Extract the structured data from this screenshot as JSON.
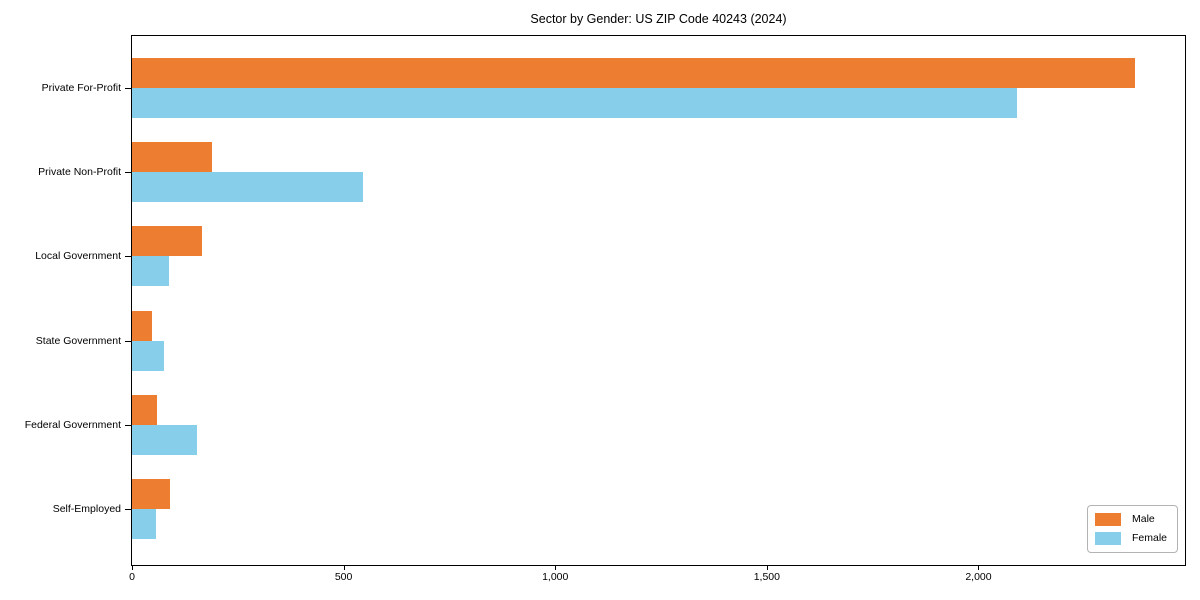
{
  "figure": {
    "background": "#ffffff",
    "spine_color": "#000000",
    "text_color": "#000000"
  },
  "chart_data": {
    "type": "bar",
    "orientation": "horizontal",
    "title": "Sector by Gender: US ZIP Code 40243 (2024)",
    "categories": [
      "Private For-Profit",
      "Private Non-Profit",
      "Local Government",
      "State Government",
      "Federal Government",
      "Self-Employed"
    ],
    "series": [
      {
        "name": "Male",
        "color": "#ed7d31",
        "values": [
          2370,
          190,
          165,
          48,
          60,
          90
        ]
      },
      {
        "name": "Female",
        "color": "#87ceeb",
        "values": [
          2090,
          545,
          87,
          75,
          153,
          57
        ]
      }
    ],
    "xlabel": "",
    "ylabel": "",
    "xlim": [
      0,
      2488
    ],
    "xticks": [
      {
        "value": 0,
        "label": "0"
      },
      {
        "value": 500,
        "label": "500"
      },
      {
        "value": 1000,
        "label": "1,000"
      },
      {
        "value": 1500,
        "label": "1,500"
      },
      {
        "value": 2000,
        "label": "2,000"
      }
    ],
    "grid": false,
    "legend": {
      "position": "lower right"
    }
  }
}
